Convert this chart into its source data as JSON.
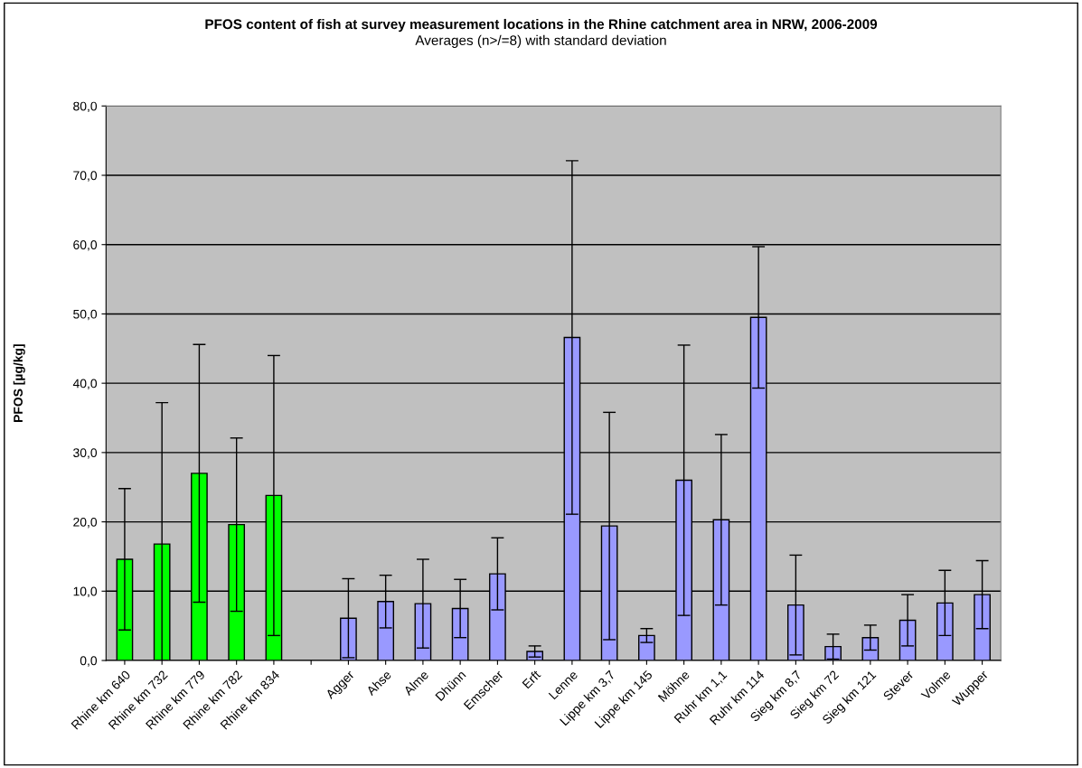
{
  "chart_data": {
    "type": "bar",
    "title": "PFOS content of fish at survey measurement locations in the Rhine catchment area in NRW, 2006-2009",
    "subtitle": "Averages (n>/=8) with standard deviation",
    "ylabel": "PFOS [µg/kg]",
    "categories": [
      "Rhine km 640",
      "Rhine km 732",
      "Rhine km 779",
      "Rhine km 782",
      "Rhine km 834",
      null,
      "Agger",
      "Ahse",
      "Alme",
      "Dhünn",
      "Emscher",
      "Erft",
      "Lenne",
      "Lippe km 3,7",
      "Lippe km 145",
      "Möhne",
      "Ruhr km 1,1",
      "Ruhr km 114",
      "Sieg km 8,7",
      "Sieg km 72",
      "Sieg km 121",
      "Stever",
      "Volme",
      "Wupper"
    ],
    "values": [
      14.6,
      16.8,
      27.0,
      19.6,
      23.8,
      null,
      6.1,
      8.5,
      8.2,
      7.5,
      12.5,
      1.3,
      46.6,
      19.4,
      3.6,
      26.0,
      20.3,
      49.5,
      8.0,
      2.0,
      3.3,
      5.8,
      8.3,
      9.5
    ],
    "errors": [
      10.2,
      [
        0,
        37.2
      ],
      18.6,
      12.5,
      20.2,
      null,
      5.7,
      3.8,
      6.4,
      4.2,
      5.2,
      0.8,
      25.5,
      16.4,
      1.0,
      19.5,
      12.3,
      10.2,
      7.2,
      1.8,
      1.8,
      3.7,
      4.7,
      4.9
    ],
    "colors": [
      "#00ff00",
      "#00ff00",
      "#00ff00",
      "#00ff00",
      "#00ff00",
      "#9999ff",
      "#9999ff",
      "#9999ff",
      "#9999ff",
      "#9999ff",
      "#9999ff",
      "#9999ff",
      "#9999ff",
      "#9999ff",
      "#9999ff",
      "#9999ff",
      "#9999ff",
      "#9999ff",
      "#9999ff",
      "#9999ff",
      "#9999ff",
      "#9999ff",
      "#9999ff",
      "#9999ff"
    ],
    "ylim": [
      0,
      80
    ],
    "yticks": [
      {
        "value": 0,
        "label": "0,0"
      },
      {
        "value": 10,
        "label": "10,0"
      },
      {
        "value": 20,
        "label": "20,0"
      },
      {
        "value": 30,
        "label": "30,0"
      },
      {
        "value": 40,
        "label": "40,0"
      },
      {
        "value": 50,
        "label": "50,0"
      },
      {
        "value": 60,
        "label": "60,0"
      },
      {
        "value": 70,
        "label": "70,0"
      },
      {
        "value": 80,
        "label": "80,0"
      }
    ],
    "grid": "y",
    "legend": false
  }
}
